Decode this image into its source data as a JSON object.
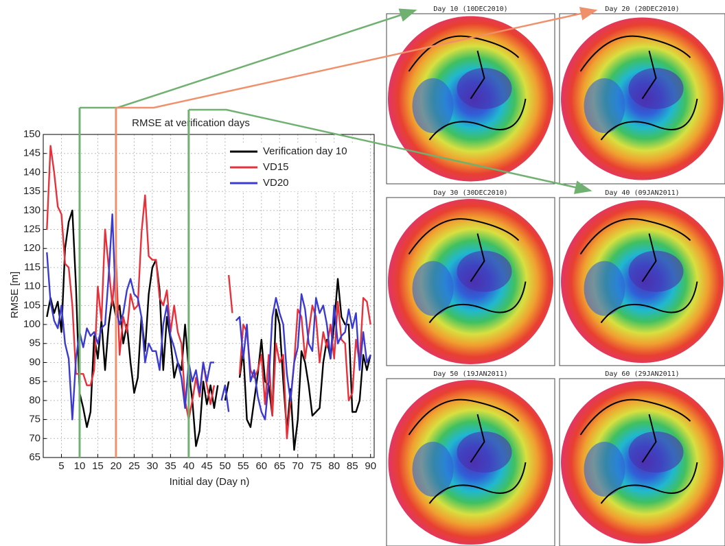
{
  "chart_data": {
    "type": "line",
    "title": "RMSE at verification days",
    "x_label": "Initial day (Day n)",
    "y_label": "RMSE [m]",
    "x": [
      1,
      2,
      3,
      4,
      5,
      6,
      7,
      8,
      9,
      10,
      11,
      12,
      13,
      14,
      15,
      16,
      17,
      18,
      19,
      20,
      21,
      22,
      23,
      24,
      25,
      26,
      27,
      28,
      29,
      30,
      31,
      32,
      33,
      34,
      35,
      36,
      37,
      38,
      39,
      40,
      41,
      42,
      43,
      44,
      45,
      46,
      47,
      48,
      49,
      50,
      51,
      52,
      53,
      54,
      55,
      56,
      57,
      58,
      59,
      60,
      61,
      62,
      63,
      64,
      65,
      66,
      67,
      68,
      69,
      70,
      71,
      72,
      73,
      74,
      75,
      76,
      77,
      78,
      79,
      80,
      81,
      82,
      83,
      84,
      85,
      86,
      87,
      88,
      89,
      90
    ],
    "series": [
      {
        "name": "Verification day 10",
        "color": "#000000",
        "values": [
          102,
          107,
          103,
          106,
          98,
          120,
          127,
          130,
          110,
          82,
          78,
          73,
          77,
          97,
          91,
          101,
          88,
          100,
          107,
          102,
          105,
          95,
          100,
          90,
          82,
          86,
          102,
          93,
          108,
          115,
          117,
          109,
          88,
          102,
          96,
          86,
          90,
          88,
          100,
          88,
          80,
          68,
          72,
          85,
          79,
          84,
          78,
          84,
          null,
          80,
          85,
          null,
          null,
          86,
          93,
          75,
          73,
          80,
          87,
          96,
          85,
          84,
          76,
          104,
          100,
          85,
          72,
          83,
          67,
          75,
          93,
          90,
          84,
          76,
          77,
          78,
          90,
          96,
          91,
          100,
          112,
          102,
          100,
          100,
          77,
          77,
          80,
          92,
          88,
          92
        ]
      },
      {
        "name": "VD15",
        "color": "#e8303a",
        "values": [
          125,
          147,
          140,
          131,
          129,
          116,
          115,
          105,
          87,
          87,
          87,
          84,
          84,
          88,
          110,
          101,
          125,
          115,
          105,
          118,
          92,
          102,
          98,
          108,
          104,
          105,
          124,
          134,
          118,
          117,
          117,
          107,
          105,
          109,
          98,
          105,
          98,
          95,
          80,
          75,
          80,
          86,
          81,
          90,
          84,
          79,
          84,
          null,
          null,
          null,
          113,
          103,
          null,
          87,
          100,
          98,
          88,
          86,
          88,
          92,
          79,
          92,
          76,
          95,
          90,
          92,
          70,
          80,
          90,
          104,
          102,
          91,
          98,
          105,
          102,
          90,
          98,
          94,
          100,
          91,
          106,
          96,
          95,
          80,
          82,
          96,
          90,
          107,
          106,
          100
        ]
      },
      {
        "name": "VD20",
        "color": "#3a3ad0",
        "values": [
          119,
          106,
          101,
          99,
          105,
          95,
          91,
          75,
          91,
          98,
          94,
          99,
          97,
          98,
          95,
          99,
          100,
          113,
          129,
          104,
          100,
          103,
          109,
          112,
          108,
          107,
          102,
          90,
          95,
          93,
          93,
          88,
          100,
          105,
          97,
          94,
          90,
          86,
          78,
          90,
          85,
          88,
          82,
          90,
          85,
          90,
          90,
          null,
          80,
          84,
          77,
          null,
          101,
          102,
          91,
          100,
          85,
          88,
          81,
          77,
          75,
          85,
          102,
          107,
          103,
          100,
          87,
          80,
          90,
          94,
          108,
          104,
          95,
          93,
          107,
          103,
          105,
          100,
          91,
          105,
          95,
          97,
          98,
          104,
          99,
          103,
          88,
          98,
          90,
          92
        ]
      }
    ],
    "xlim": [
      0,
      91
    ],
    "xticks": [
      5,
      10,
      15,
      20,
      25,
      30,
      35,
      40,
      45,
      50,
      55,
      60,
      65,
      70,
      75,
      80,
      85,
      90
    ],
    "ylim": [
      65,
      150
    ],
    "yticks": [
      65,
      70,
      75,
      80,
      85,
      90,
      95,
      100,
      105,
      110,
      115,
      120,
      125,
      130,
      135,
      140,
      145,
      150
    ],
    "grid": true,
    "legend": "upper right",
    "markers": [
      {
        "x": 10,
        "color": "#70b070"
      },
      {
        "x": 20,
        "color": "#f0906a"
      },
      {
        "x": 40,
        "color": "#70b070"
      }
    ]
  },
  "panels": [
    {
      "title": "Day 10 (10DEC2010)"
    },
    {
      "title": "Day 20 (20DEC2010)"
    },
    {
      "title": "Day 30 (30DEC2010)"
    },
    {
      "title": "Day 40 (09JAN2011)"
    },
    {
      "title": "Day 50 (19JAN2011)"
    },
    {
      "title": "Day 60 (29JAN2011)"
    }
  ]
}
